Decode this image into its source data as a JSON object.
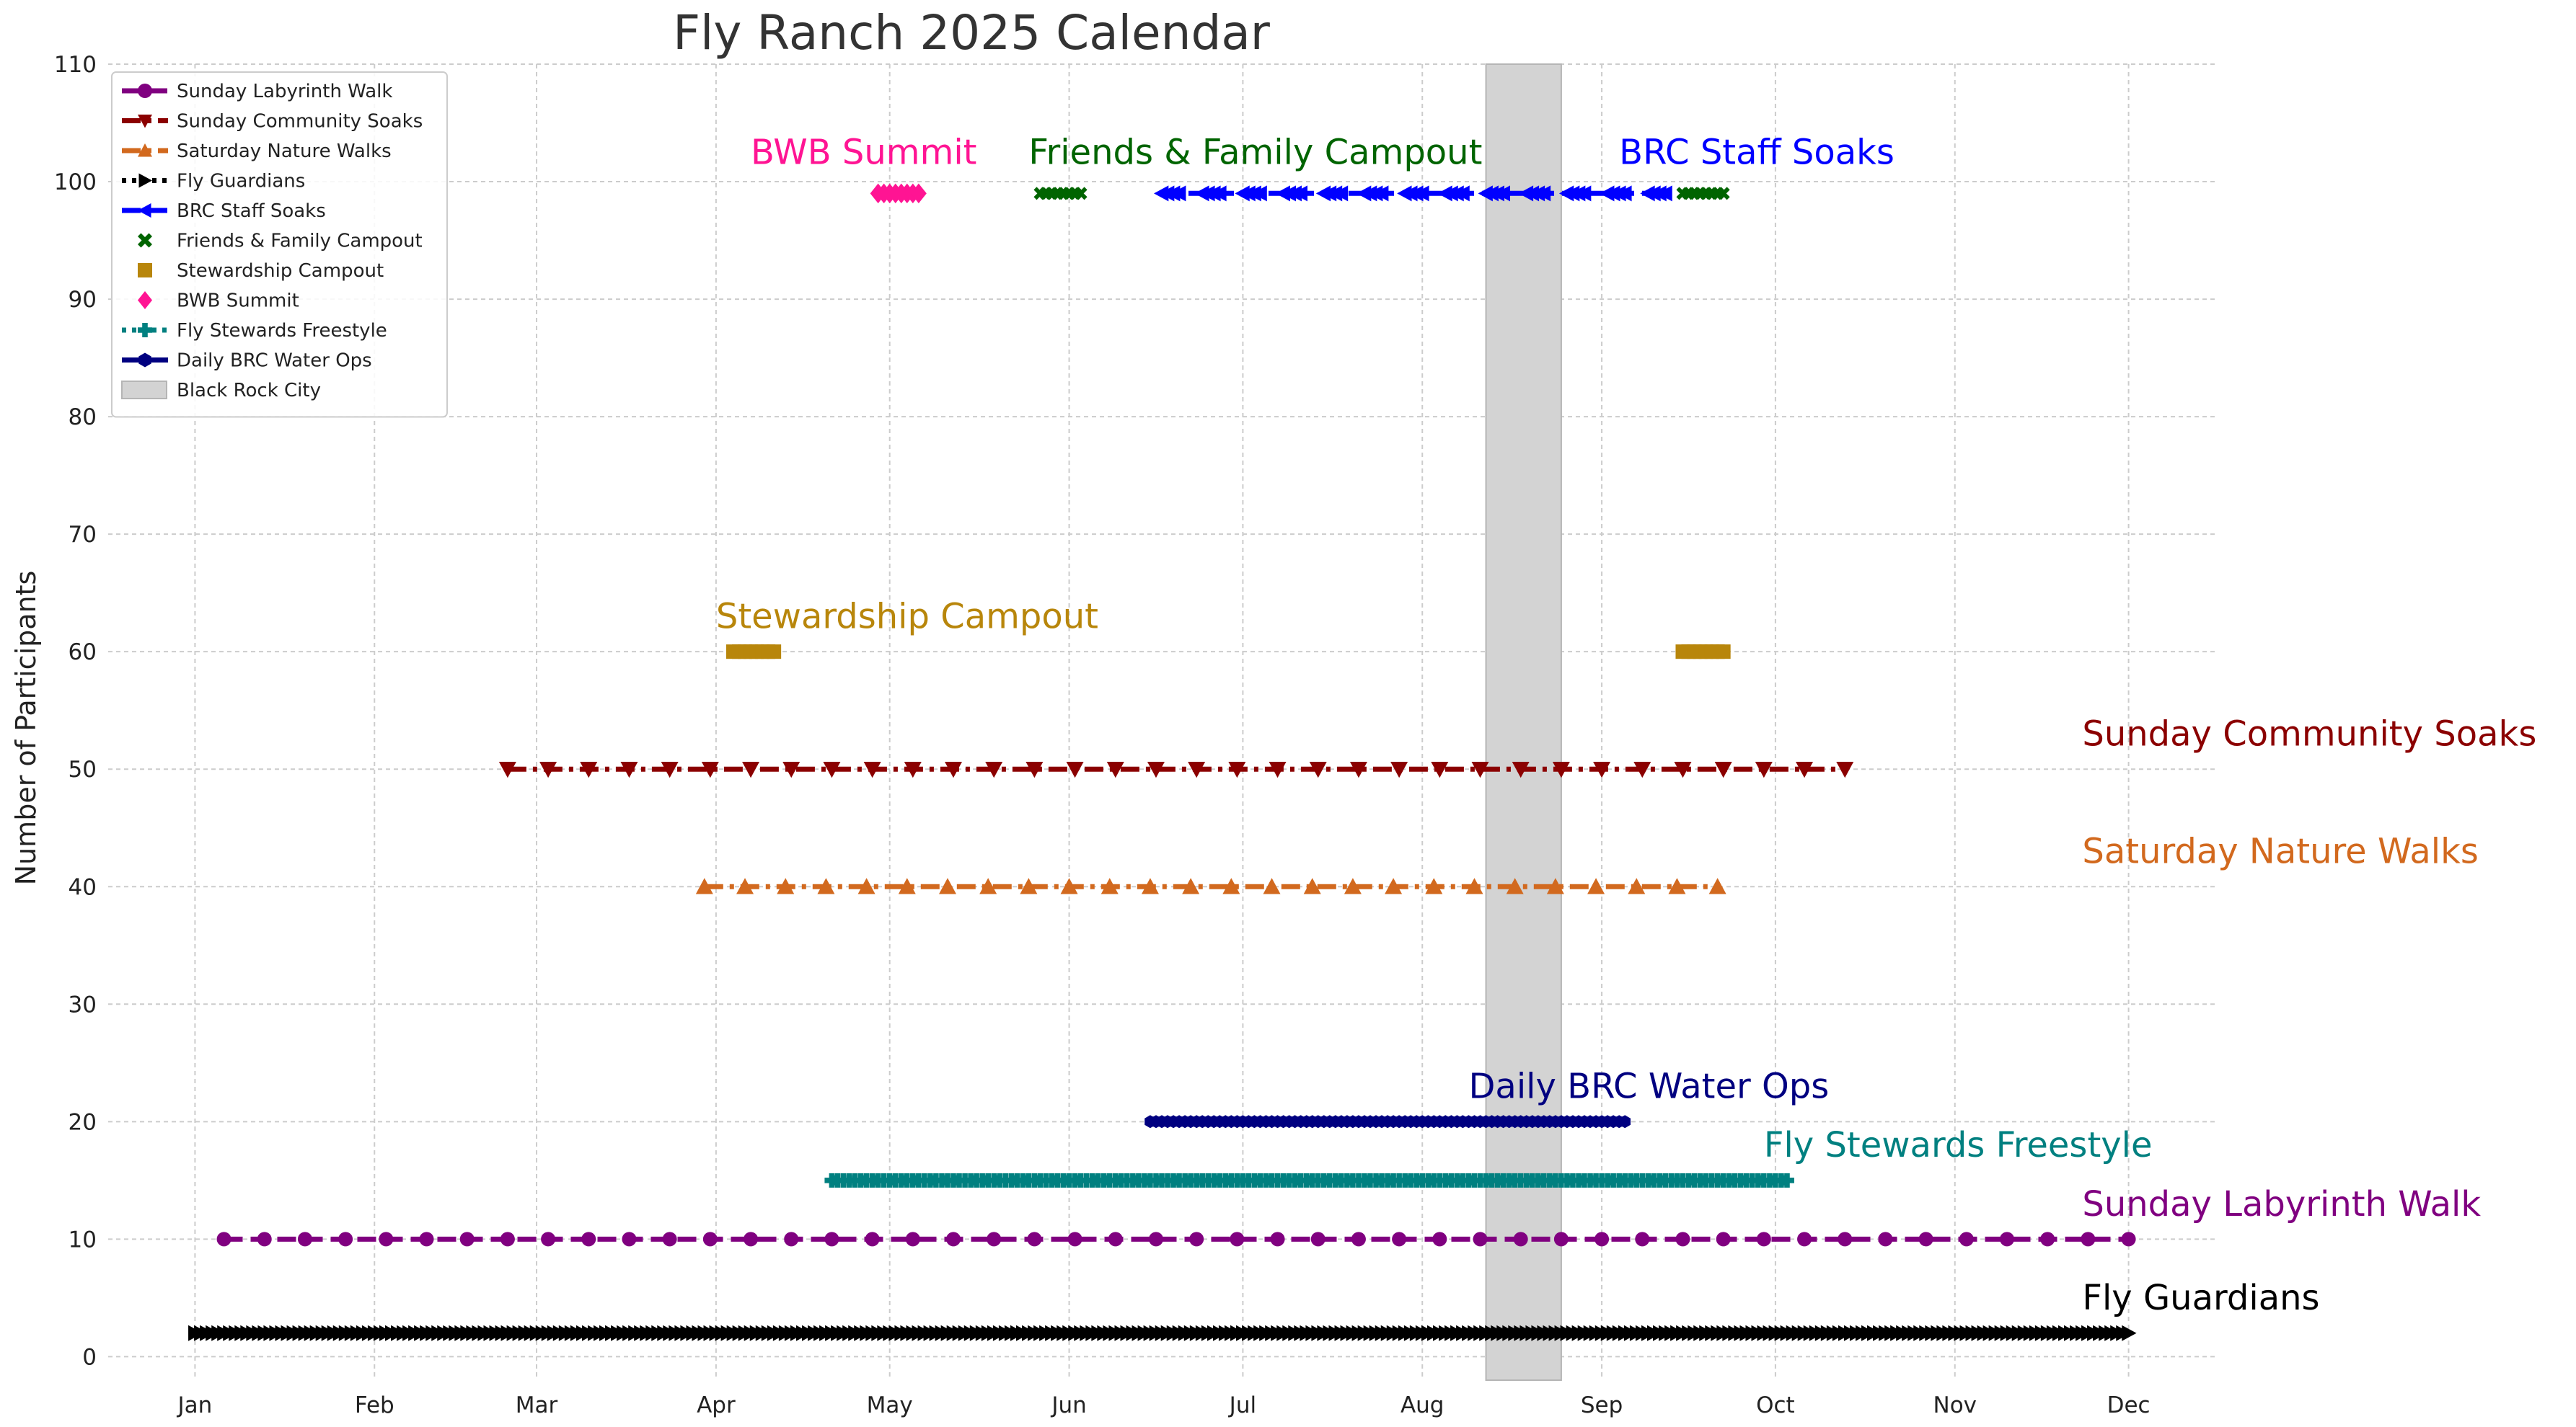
{
  "chart_data": {
    "type": "timeline",
    "title": "Fly Ranch 2025 Calendar",
    "xlabel": "",
    "ylabel": "Number of Participants",
    "ylim": [
      -2,
      110
    ],
    "xlim_day_of_year": [
      -15,
      349
    ],
    "grid": true,
    "legend_position": "upper-left",
    "x_ticks": [
      {
        "label": "Jan",
        "day": 0
      },
      {
        "label": "Feb",
        "day": 31
      },
      {
        "label": "Mar",
        "day": 59
      },
      {
        "label": "Apr",
        "day": 90
      },
      {
        "label": "May",
        "day": 120
      },
      {
        "label": "Jun",
        "day": 151
      },
      {
        "label": "Jul",
        "day": 181
      },
      {
        "label": "Aug",
        "day": 212
      },
      {
        "label": "Sep",
        "day": 243
      },
      {
        "label": "Oct",
        "day": 273
      },
      {
        "label": "Nov",
        "day": 304
      },
      {
        "label": "Dec",
        "day": 334
      }
    ],
    "y_ticks": [
      "0",
      "10",
      "20",
      "30",
      "40",
      "50",
      "60",
      "70",
      "80",
      "90",
      "100",
      "110"
    ],
    "shaded_region": {
      "name": "Black Rock City",
      "start_day": 223,
      "end_day": 236,
      "color": "#d3d3d3"
    },
    "series": [
      {
        "name": "Sunday Labyrinth Walk",
        "color": "#800080",
        "marker": "circle",
        "line": "dashed",
        "y": 10,
        "schedule": "weekly",
        "start_day": 5,
        "step": 7,
        "count": 48,
        "label": "Sunday Labyrinth Walk"
      },
      {
        "name": "Sunday Community Soaks",
        "color": "#8b0000",
        "marker": "triangle-down",
        "line": "dashdot",
        "y": 50,
        "schedule": "weekly",
        "start_day": 54,
        "step": 7,
        "count": 34,
        "label": "Sunday Community Soaks"
      },
      {
        "name": "Saturday Nature Walks",
        "color": "#d2691e",
        "marker": "triangle-up",
        "line": "dashdot",
        "y": 40,
        "schedule": "weekly",
        "start_day": 88,
        "step": 7,
        "count": 26,
        "label": "Saturday Nature Walks"
      },
      {
        "name": "Fly Guardians",
        "color": "#000000",
        "marker": "triangle-right",
        "line": "dotted",
        "y": 2,
        "schedule": "daily",
        "start_day": 0,
        "step": 1,
        "count": 335,
        "label": "Fly Guardians"
      },
      {
        "name": "BRC Staff Soaks",
        "color": "#0000ff",
        "marker": "triangle-left",
        "line": "dashed",
        "y": 99,
        "schedule": "days",
        "days": [
          167,
          168,
          169,
          170,
          174,
          175,
          176,
          177,
          181,
          182,
          183,
          184,
          188,
          189,
          190,
          191,
          195,
          196,
          197,
          198,
          202,
          203,
          204,
          205,
          209,
          210,
          211,
          212,
          216,
          217,
          218,
          219,
          223,
          224,
          225,
          226,
          230,
          231,
          232,
          233,
          237,
          238,
          239,
          240,
          244,
          245,
          246,
          247,
          251,
          252,
          253,
          254
        ],
        "label": "BRC Staff Soaks"
      },
      {
        "name": "Friends & Family Campout",
        "color": "#006400",
        "marker": "x",
        "line": "none",
        "y": 99,
        "schedule": "ranges",
        "ranges": [
          [
            146,
            153
          ],
          [
            257,
            264
          ]
        ],
        "label": "Friends & Family Campout"
      },
      {
        "name": "Stewardship Campout",
        "color": "#b8860b",
        "marker": "square",
        "line": "none",
        "y": 60,
        "schedule": "ranges",
        "ranges": [
          [
            93,
            100
          ],
          [
            257,
            264
          ]
        ],
        "label": "Stewardship Campout"
      },
      {
        "name": "BWB Summit",
        "color": "#ff1493",
        "marker": "diamond",
        "line": "none",
        "y": 99,
        "schedule": "ranges",
        "ranges": [
          [
            118,
            125
          ]
        ],
        "label": "BWB Summit"
      },
      {
        "name": "Fly Stewards Freestyle",
        "color": "#008080",
        "marker": "plus",
        "line": "dotted",
        "y": 15,
        "schedule": "daily",
        "start_day": 110,
        "step": 1,
        "count": 166,
        "label": "Fly Stewards Freestyle"
      },
      {
        "name": "Daily BRC Water Ops",
        "color": "#000080",
        "marker": "hexagon",
        "line": "solid",
        "y": 20,
        "schedule": "daily",
        "start_day": 165,
        "step": 1,
        "count": 83,
        "label": "Daily BRC Water Ops"
      }
    ],
    "legend": [
      "Sunday Labyrinth Walk",
      "Sunday Community Soaks",
      "Saturday Nature Walks",
      "Fly Guardians",
      "BRC Staff Soaks",
      "Friends & Family Campout",
      "Stewardship Campout",
      "BWB Summit",
      "Fly Stewards Freestyle",
      "Daily BRC Water Ops",
      "Black Rock City"
    ],
    "annotations": [
      {
        "text": "BWB Summit",
        "color": "#ff1493",
        "x_day": 96,
        "y": 101.5
      },
      {
        "text": "Friends & Family Campout",
        "color": "#006400",
        "x_day": 144,
        "y": 101.5
      },
      {
        "text": "BRC Staff Soaks",
        "color": "#0000ff",
        "x_day": 246,
        "y": 101.5
      },
      {
        "text": "Stewardship Campout",
        "color": "#b8860b",
        "x_day": 90,
        "y": 62
      },
      {
        "text": "Sunday Community Soaks",
        "color": "#8b0000",
        "x_day": 326,
        "y": 52
      },
      {
        "text": "Saturday Nature Walks",
        "color": "#d2691e",
        "x_day": 326,
        "y": 42
      },
      {
        "text": "Daily BRC Water Ops",
        "color": "#000080",
        "x_day": 220,
        "y": 22
      },
      {
        "text": "Fly Stewards Freestyle",
        "color": "#008080",
        "x_day": 271,
        "y": 17
      },
      {
        "text": "Sunday Labyrinth Walk",
        "color": "#800080",
        "x_day": 326,
        "y": 12
      },
      {
        "text": "Fly Guardians",
        "color": "#000000",
        "x_day": 326,
        "y": 4
      }
    ]
  }
}
